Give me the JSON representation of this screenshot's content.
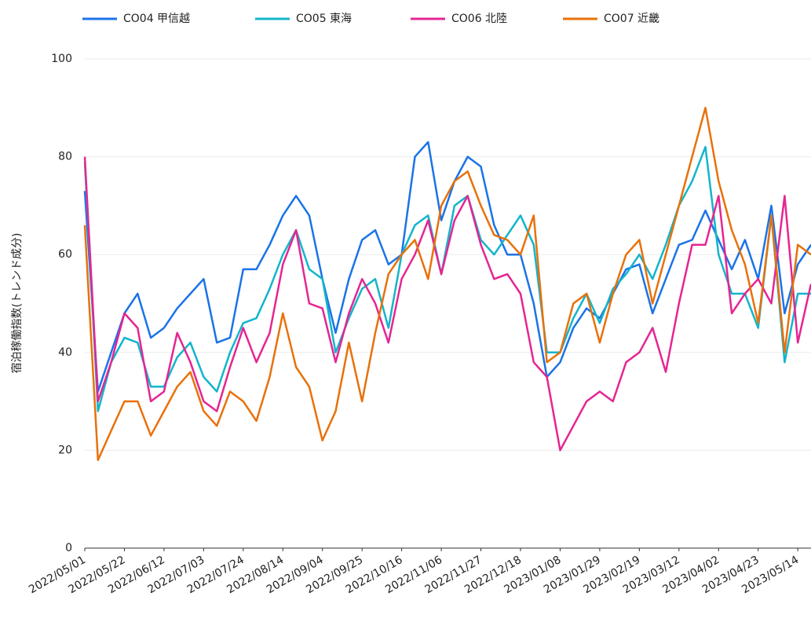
{
  "chart_data": {
    "type": "line",
    "y_label": "宿泊稼働指数(トレンド成分)",
    "x": [
      "2022/05/01",
      "2022/05/08",
      "2022/05/15",
      "2022/05/22",
      "2022/05/29",
      "2022/06/05",
      "2022/06/12",
      "2022/06/19",
      "2022/06/26",
      "2022/07/03",
      "2022/07/10",
      "2022/07/17",
      "2022/07/24",
      "2022/07/31",
      "2022/08/07",
      "2022/08/14",
      "2022/08/21",
      "2022/08/28",
      "2022/09/04",
      "2022/09/11",
      "2022/09/18",
      "2022/09/25",
      "2022/10/02",
      "2022/10/09",
      "2022/10/16",
      "2022/10/23",
      "2022/10/30",
      "2022/11/06",
      "2022/11/13",
      "2022/11/20",
      "2022/11/27",
      "2022/12/04",
      "2022/12/11",
      "2022/12/18",
      "2022/12/25",
      "2023/01/01",
      "2023/01/08",
      "2023/01/15",
      "2023/01/22",
      "2023/01/29",
      "2023/02/05",
      "2023/02/12",
      "2023/02/19",
      "2023/02/26",
      "2023/03/05",
      "2023/03/12",
      "2023/03/19",
      "2023/03/26",
      "2023/04/02",
      "2023/04/09",
      "2023/04/16",
      "2023/04/23",
      "2023/04/30",
      "2023/05/07",
      "2023/05/14",
      "2023/05/21"
    ],
    "series": [
      {
        "name": "CO04 甲信越",
        "color": "#1a73e8",
        "values": [
          73,
          32,
          40,
          48,
          52,
          43,
          45,
          49,
          52,
          55,
          42,
          43,
          57,
          57,
          62,
          68,
          72,
          68,
          55,
          44,
          55,
          63,
          65,
          58,
          60,
          80,
          83,
          67,
          75,
          80,
          78,
          66,
          60,
          60,
          50,
          35,
          38,
          45,
          49,
          47,
          52,
          57,
          58,
          48,
          55,
          62,
          63,
          69,
          63,
          57,
          63,
          55,
          70,
          48,
          58,
          62
        ]
      },
      {
        "name": "CO05 東海",
        "color": "#12b5cb",
        "values": [
          79,
          28,
          38,
          43,
          42,
          33,
          33,
          39,
          42,
          35,
          32,
          40,
          46,
          47,
          53,
          60,
          65,
          57,
          55,
          40,
          47,
          53,
          55,
          45,
          60,
          66,
          68,
          56,
          70,
          72,
          63,
          60,
          64,
          68,
          62,
          40,
          40,
          47,
          52,
          46,
          53,
          56,
          60,
          55,
          62,
          70,
          75,
          82,
          60,
          52,
          52,
          45,
          68,
          38,
          52,
          52
        ]
      },
      {
        "name": "CO06 北陸",
        "color": "#e52592",
        "values": [
          80,
          30,
          38,
          48,
          45,
          30,
          32,
          44,
          38,
          30,
          28,
          37,
          45,
          38,
          44,
          58,
          65,
          50,
          49,
          38,
          48,
          55,
          50,
          42,
          55,
          60,
          67,
          56,
          67,
          72,
          62,
          55,
          56,
          52,
          38,
          35,
          20,
          25,
          30,
          32,
          30,
          38,
          40,
          45,
          36,
          50,
          62,
          62,
          72,
          48,
          52,
          55,
          50,
          72,
          42,
          54
        ]
      },
      {
        "name": "CO07 近畿",
        "color": "#e8710a",
        "values": [
          66,
          18,
          24,
          30,
          30,
          23,
          28,
          33,
          36,
          28,
          25,
          32,
          30,
          26,
          35,
          48,
          37,
          33,
          22,
          28,
          42,
          30,
          44,
          56,
          60,
          63,
          55,
          70,
          75,
          77,
          70,
          64,
          63,
          60,
          68,
          38,
          40,
          50,
          52,
          42,
          52,
          60,
          63,
          50,
          60,
          70,
          80,
          90,
          75,
          65,
          58,
          46,
          68,
          40,
          62,
          60
        ]
      }
    ],
    "xlim": [
      "2022/05/01",
      "2023/05/21"
    ],
    "xticks": [
      "2022/05/01",
      "2022/05/22",
      "2022/06/12",
      "2022/07/03",
      "2022/07/24",
      "2022/08/14",
      "2022/09/04",
      "2022/09/25",
      "2022/10/16",
      "2022/11/06",
      "2022/11/27",
      "2022/12/18",
      "2023/01/08",
      "2023/01/29",
      "2023/02/19",
      "2023/03/12",
      "2023/04/02",
      "2023/04/23",
      "2023/05/14"
    ],
    "ylim": [
      0,
      100
    ],
    "yticks": [
      0,
      20,
      40,
      60,
      80,
      100
    ],
    "grid": true,
    "legend": "top"
  }
}
